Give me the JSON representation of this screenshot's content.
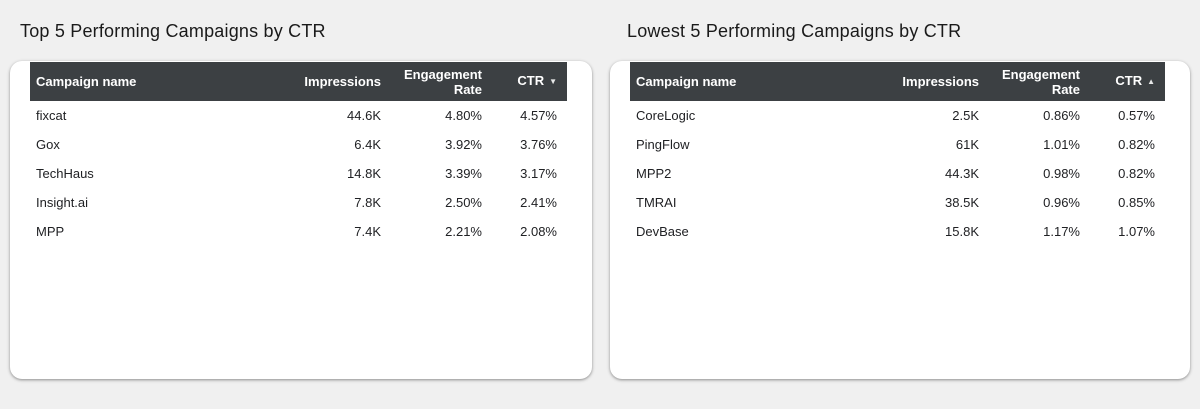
{
  "page": {
    "background": "#f0f0f0"
  },
  "colors": {
    "card_bg": "#ffffff",
    "header_bg": "#3c4043",
    "header_text": "#ffffff",
    "row_text": "#202124",
    "title_text": "#1a1a1a"
  },
  "chart_data": [
    {
      "type": "table",
      "title": "Top 5 Performing Campaigns by CTR",
      "columns": [
        "Campaign name",
        "Impressions",
        "Engagement Rate",
        "CTR"
      ],
      "sort": {
        "column": "CTR",
        "direction": "desc",
        "arrow_glyph": "▼"
      },
      "rows": [
        [
          "fixcat",
          "44.6K",
          "4.80%",
          "4.57%"
        ],
        [
          "Gox",
          "6.4K",
          "3.92%",
          "3.76%"
        ],
        [
          "TechHaus",
          "14.8K",
          "3.39%",
          "3.17%"
        ],
        [
          "Insight.ai",
          "7.8K",
          "2.50%",
          "2.41%"
        ],
        [
          "MPP",
          "7.4K",
          "2.21%",
          "2.08%"
        ]
      ]
    },
    {
      "type": "table",
      "title": "Lowest 5 Performing Campaigns by CTR",
      "columns": [
        "Campaign name",
        "Impressions",
        "Engagement Rate",
        "CTR"
      ],
      "sort": {
        "column": "CTR",
        "direction": "asc",
        "arrow_glyph": "▲"
      },
      "rows": [
        [
          "CoreLogic",
          "2.5K",
          "0.86%",
          "0.57%"
        ],
        [
          "PingFlow",
          "61K",
          "1.01%",
          "0.82%"
        ],
        [
          "MPP2",
          "44.3K",
          "0.98%",
          "0.82%"
        ],
        [
          "TMRAI",
          "38.5K",
          "0.96%",
          "0.85%"
        ],
        [
          "DevBase",
          "15.8K",
          "1.17%",
          "1.07%"
        ]
      ]
    }
  ]
}
